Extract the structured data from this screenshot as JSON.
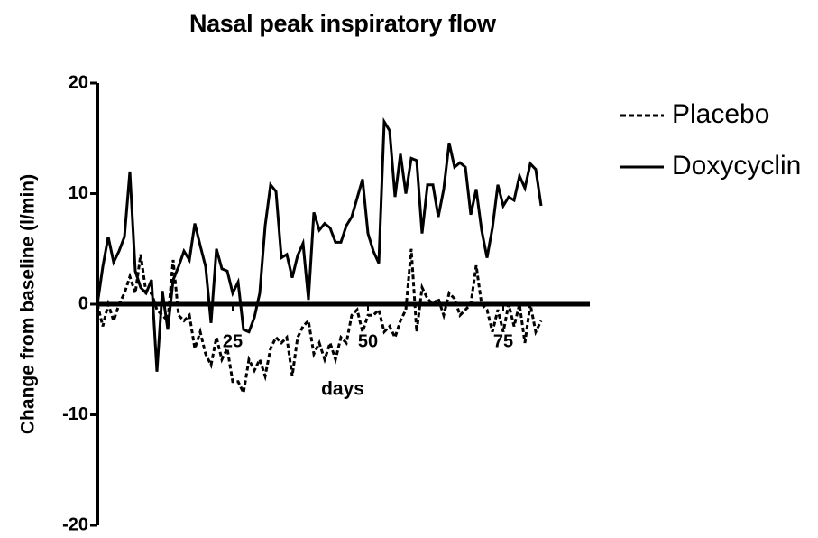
{
  "chart_data": {
    "type": "line",
    "title": "Nasal peak inspiratory flow",
    "xlabel": "days",
    "ylabel": "Change from baseline (l/min)",
    "x": [
      0,
      1,
      2,
      3,
      4,
      5,
      6,
      7,
      8,
      9,
      10,
      11,
      12,
      13,
      14,
      15,
      16,
      17,
      18,
      19,
      20,
      21,
      22,
      23,
      24,
      25,
      26,
      27,
      28,
      29,
      30,
      31,
      32,
      33,
      34,
      35,
      36,
      37,
      38,
      39,
      40,
      41,
      42,
      43,
      44,
      45,
      46,
      47,
      48,
      49,
      50,
      51,
      52,
      53,
      54,
      55,
      56,
      57,
      58,
      59,
      60,
      61,
      62,
      63,
      64,
      65,
      66,
      67,
      68,
      69,
      70,
      71,
      72,
      73,
      74,
      75,
      76,
      77,
      78,
      79,
      80,
      81,
      82
    ],
    "series": [
      {
        "name": "Placebo",
        "color": "#000000",
        "style": "dashed",
        "values": [
          0,
          -2,
          0,
          -1.5,
          0,
          1,
          2.5,
          1,
          4.5,
          1,
          1,
          -0.5,
          -1,
          -1.5,
          4,
          -1,
          -1.5,
          -1,
          -4,
          -2.5,
          -4.5,
          -5.5,
          -3,
          -5,
          -4,
          -7,
          -7,
          -8,
          -5,
          -6,
          -5,
          -6.5,
          -4,
          -3,
          -3.5,
          -3,
          -6.5,
          -3,
          -2,
          -1.5,
          -4.5,
          -3.5,
          -5,
          -3.5,
          -5,
          -3,
          -3.5,
          -1,
          -0.5,
          -2.5,
          -1,
          -1,
          -0.5,
          -2.5,
          -2,
          -3,
          -1.5,
          -0.5,
          5,
          -2.5,
          1.5,
          0.5,
          0,
          0.5,
          -1,
          1,
          0.5,
          -1,
          -0.5,
          0,
          3.5,
          0,
          -0.5,
          -2.5,
          -0.5,
          -2.5,
          0,
          -2,
          0,
          -3.5,
          0,
          -2.5,
          -1.5
        ]
      },
      {
        "name": "Doxycyclin",
        "color": "#000000",
        "style": "solid",
        "values": [
          0,
          3.4,
          6.1,
          3.8,
          4.8,
          6.1,
          12,
          3,
          1.5,
          1,
          2.2,
          -6.1,
          1.2,
          -2.3,
          2.2,
          3.4,
          4.8,
          4,
          7.3,
          5.3,
          3.4,
          -1.7,
          5,
          3.2,
          3,
          1,
          2,
          -2.3,
          -2.5,
          -1.2,
          1,
          7.1,
          10.8,
          10.2,
          4.2,
          4.5,
          2.4,
          4.4,
          5.5,
          0.4,
          8.3,
          6.7,
          7.3,
          6.9,
          5.6,
          5.6,
          7.1,
          7.9,
          9.6,
          11.3,
          6.4,
          4.8,
          3.7,
          16.5,
          15.7,
          9.7,
          13.6,
          10,
          13.2,
          13,
          6.4,
          10.8,
          10.8,
          7.9,
          10.4,
          14.6,
          12.4,
          12.8,
          12.4,
          8.1,
          10.4,
          6.7,
          4.2,
          6.9,
          10.8,
          8.9,
          9.7,
          9.4,
          11.6,
          10.5,
          12.7,
          12.2,
          8.9
        ]
      }
    ],
    "xlim": [
      0,
      91
    ],
    "xticks": [
      25,
      50,
      75
    ],
    "ylim": [
      -20,
      20
    ],
    "yticks": [
      20,
      10,
      0,
      -10,
      -20
    ],
    "legend": "upper right"
  }
}
